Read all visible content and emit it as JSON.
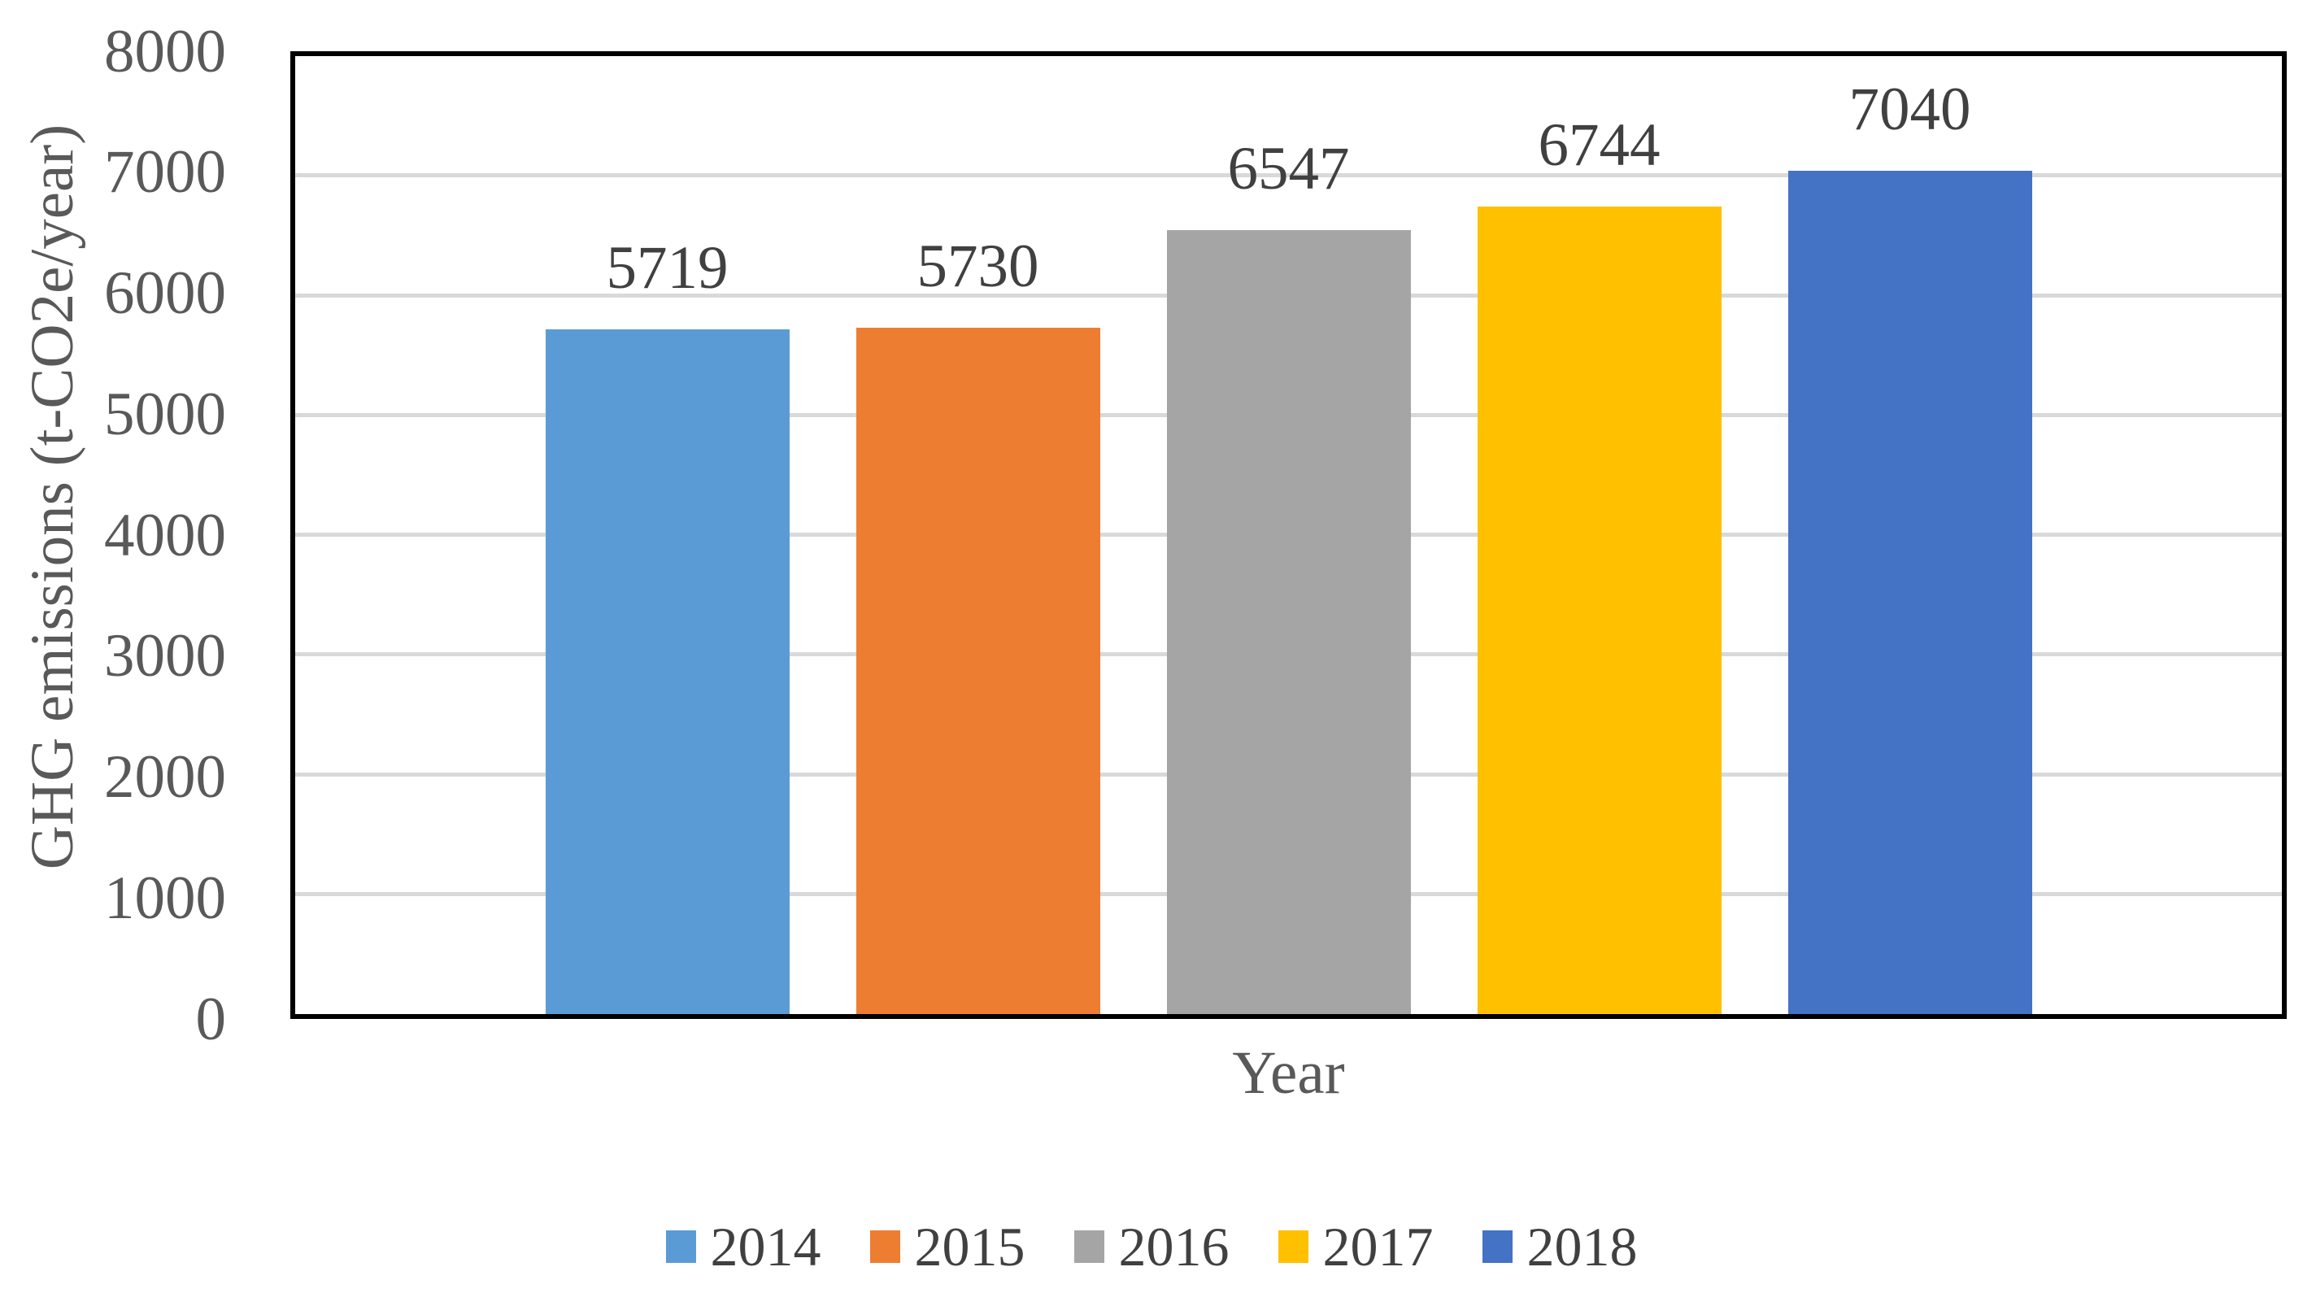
{
  "chart_data": {
    "type": "bar",
    "title": "",
    "categories": [
      "2014",
      "2015",
      "2016",
      "2017",
      "2018"
    ],
    "values": [
      5719,
      5730,
      6547,
      6744,
      7040
    ],
    "data_labels": [
      "5719",
      "5730",
      "6547",
      "6744",
      "7040"
    ],
    "series_colors": [
      "#5B9BD5",
      "#ED7D31",
      "#A5A5A5",
      "#FFC000",
      "#4472C4"
    ],
    "xlabel": "Year",
    "ylabel": "GHG emissions (t-CO2e/year)",
    "ylim": [
      0,
      8000
    ],
    "ytick_step": 1000,
    "yticks": [
      "0",
      "1000",
      "2000",
      "3000",
      "4000",
      "5000",
      "6000",
      "7000",
      "8000"
    ],
    "grid": "horizontal gridlines on",
    "legend_position": "bottom",
    "colors": {
      "gridline": "#D9D9D9",
      "plot_border": "#000000",
      "axis_text": "#595959",
      "data_label_text": "#404040",
      "legend_text": "#404040",
      "background": "#FFFFFF"
    }
  }
}
